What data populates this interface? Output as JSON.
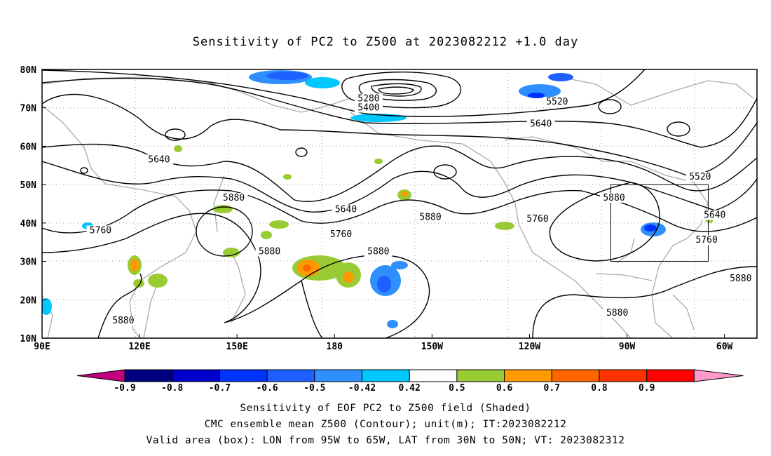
{
  "title": "Sensitivity of PC2 to Z500 at 2023082212 +1.0 day",
  "axes": {
    "lat_labels": [
      "80N",
      "70N",
      "60N",
      "50N",
      "40N",
      "30N",
      "20N",
      "10N"
    ],
    "lon_labels": [
      "90E",
      "120E",
      "150E",
      "180",
      "150W",
      "120W",
      "90W",
      "60W"
    ]
  },
  "contour_labels": [
    {
      "text": "5280",
      "lon": -169.5,
      "lat": 71.9
    },
    {
      "text": "5400",
      "lon": -169.5,
      "lat": 69.5
    },
    {
      "text": "5520",
      "lon": -111.5,
      "lat": 71.0
    },
    {
      "text": "5640",
      "lon": -116.5,
      "lat": 65.3
    },
    {
      "text": "5640",
      "lon": 126.0,
      "lat": 56.0
    },
    {
      "text": "5520",
      "lon": -67.5,
      "lat": 51.5
    },
    {
      "text": "5880",
      "lon": 149.0,
      "lat": 46.0
    },
    {
      "text": "5640",
      "lon": -176.5,
      "lat": 43.0
    },
    {
      "text": "5880",
      "lon": -150.5,
      "lat": 41.0
    },
    {
      "text": "5760",
      "lon": -117.5,
      "lat": 40.5
    },
    {
      "text": "5880",
      "lon": -94.0,
      "lat": 46.0
    },
    {
      "text": "5640",
      "lon": -63.0,
      "lat": 41.5
    },
    {
      "text": "5760",
      "lon": -178.0,
      "lat": 36.5
    },
    {
      "text": "5760",
      "lon": 108.0,
      "lat": 37.5
    },
    {
      "text": "5760",
      "lon": -65.5,
      "lat": 35.0
    },
    {
      "text": "5880",
      "lon": 160.0,
      "lat": 32.0
    },
    {
      "text": "5880",
      "lon": -166.5,
      "lat": 32.0
    },
    {
      "text": "5880",
      "lon": -55.0,
      "lat": 25.0
    },
    {
      "text": "5880",
      "lon": -93.0,
      "lat": 16.0
    },
    {
      "text": "5880",
      "lon": 115.0,
      "lat": 14.0
    }
  ],
  "colorbar": {
    "labels": [
      "-0.9",
      "-0.8",
      "-0.7",
      "-0.6",
      "-0.5",
      "-0.42",
      "0.42",
      "0.5",
      "0.6",
      "0.7",
      "0.8",
      "0.9"
    ],
    "colors": [
      "#000080",
      "#0000cd",
      "#0033ff",
      "#1e5fff",
      "#2f8fff",
      "#00c8ff",
      "#ffffff",
      "#99cc33",
      "#ff9900",
      "#ff6600",
      "#ff3300",
      "#ff0000"
    ],
    "low_extend_color": "#c0007f",
    "high_extend_color": "#ff99cc"
  },
  "valid_box": {
    "lon_min": -95,
    "lon_max": -65,
    "lat_min": 30,
    "lat_max": 50
  },
  "captions": [
    "Sensitivity of EOF PC2 to Z500 field (Shaded)",
    "CMC ensemble mean Z500 (Contour); unit(m); IT:2023082212",
    "Valid area (box): LON from 95W to 65W, LAT from 30N to 50N; VT: 2023082312"
  ]
}
